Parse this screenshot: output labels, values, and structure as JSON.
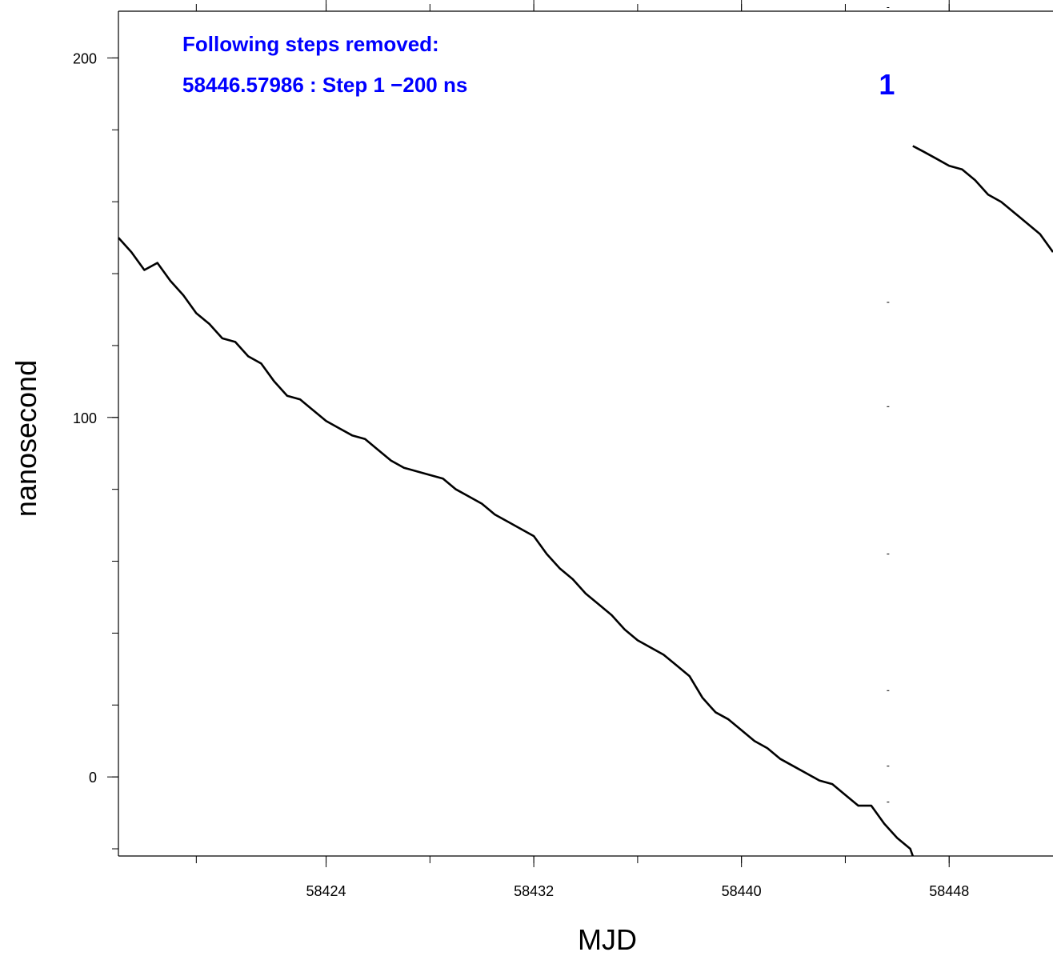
{
  "chart_data": {
    "type": "line",
    "xlabel": "MJD",
    "ylabel": "nanosecond",
    "xlim": [
      58416.0,
      58452.0
    ],
    "ylim": [
      -22,
      213
    ],
    "x_ticks": [
      58424,
      58432,
      58440,
      58448
    ],
    "x_tick_labels": [
      "58424",
      "58432",
      "58440",
      "58448"
    ],
    "x_minor_ticks": [
      58419,
      58424,
      58428,
      58432,
      58436,
      58440,
      58444,
      58448
    ],
    "y_ticks": [
      0,
      100,
      200
    ],
    "y_tick_labels": [
      "0",
      "100",
      "200"
    ],
    "y_minor_ticks": [
      -20,
      0,
      20,
      40,
      60,
      80,
      100,
      120,
      140,
      160,
      180,
      200
    ],
    "annotations": {
      "line1": "Following steps removed:",
      "line2": "58446.57986 : Step 1 −200 ns",
      "step_marker": "1"
    },
    "step_mjd": 58445.6,
    "step_ticks_y": [
      -7,
      3,
      24,
      62,
      103,
      132,
      214
    ],
    "annotation_color": "#0000ff",
    "line_color": "#000000",
    "series": [
      {
        "values": [
          [
            58416.0,
            150
          ],
          [
            58416.5,
            146
          ],
          [
            58417.0,
            141
          ],
          [
            58417.5,
            143
          ],
          [
            58418.0,
            138
          ],
          [
            58418.5,
            134
          ],
          [
            58419.0,
            129
          ],
          [
            58419.5,
            126
          ],
          [
            58420.0,
            122
          ],
          [
            58420.5,
            121
          ],
          [
            58421.0,
            117
          ],
          [
            58421.5,
            115
          ],
          [
            58422.0,
            110
          ],
          [
            58422.5,
            106
          ],
          [
            58423.0,
            105
          ],
          [
            58423.5,
            102
          ],
          [
            58424.0,
            99
          ],
          [
            58424.5,
            97
          ],
          [
            58425.0,
            95
          ],
          [
            58425.5,
            94
          ],
          [
            58426.0,
            91
          ],
          [
            58426.5,
            88
          ],
          [
            58427.0,
            86
          ],
          [
            58427.5,
            85
          ],
          [
            58428.0,
            84
          ],
          [
            58428.5,
            83
          ],
          [
            58429.0,
            80
          ],
          [
            58429.5,
            78
          ],
          [
            58430.0,
            76
          ],
          [
            58430.5,
            73
          ],
          [
            58431.0,
            71
          ],
          [
            58431.5,
            69
          ],
          [
            58432.0,
            67
          ],
          [
            58432.5,
            62
          ],
          [
            58433.0,
            58
          ],
          [
            58433.5,
            55
          ],
          [
            58434.0,
            51
          ],
          [
            58434.5,
            48
          ],
          [
            58435.0,
            45
          ],
          [
            58435.5,
            41
          ],
          [
            58436.0,
            38
          ],
          [
            58436.5,
            36
          ],
          [
            58437.0,
            34
          ],
          [
            58437.5,
            31
          ],
          [
            58438.0,
            28
          ],
          [
            58438.5,
            22
          ],
          [
            58439.0,
            18
          ],
          [
            58439.5,
            16
          ],
          [
            58440.0,
            13
          ],
          [
            58440.5,
            10
          ],
          [
            58441.0,
            8
          ],
          [
            58441.5,
            5
          ],
          [
            58442.0,
            3
          ],
          [
            58442.5,
            1
          ],
          [
            58443.0,
            -1
          ],
          [
            58443.5,
            -2
          ],
          [
            58444.0,
            -5
          ],
          [
            58444.5,
            -8
          ],
          [
            58445.0,
            -8
          ],
          [
            58445.5,
            -13
          ],
          [
            58446.0,
            -17
          ],
          [
            58446.5,
            -20
          ],
          [
            58446.6,
            -22
          ]
        ]
      },
      {
        "values": [
          [
            58446.6,
            175.5
          ],
          [
            58447.0,
            174
          ],
          [
            58447.5,
            172
          ],
          [
            58448.0,
            170
          ],
          [
            58448.5,
            169
          ],
          [
            58449.0,
            166
          ],
          [
            58449.5,
            162
          ],
          [
            58450.0,
            160
          ],
          [
            58450.5,
            157
          ],
          [
            58451.0,
            154
          ],
          [
            58451.5,
            151
          ],
          [
            58452.0,
            146
          ]
        ]
      }
    ]
  }
}
